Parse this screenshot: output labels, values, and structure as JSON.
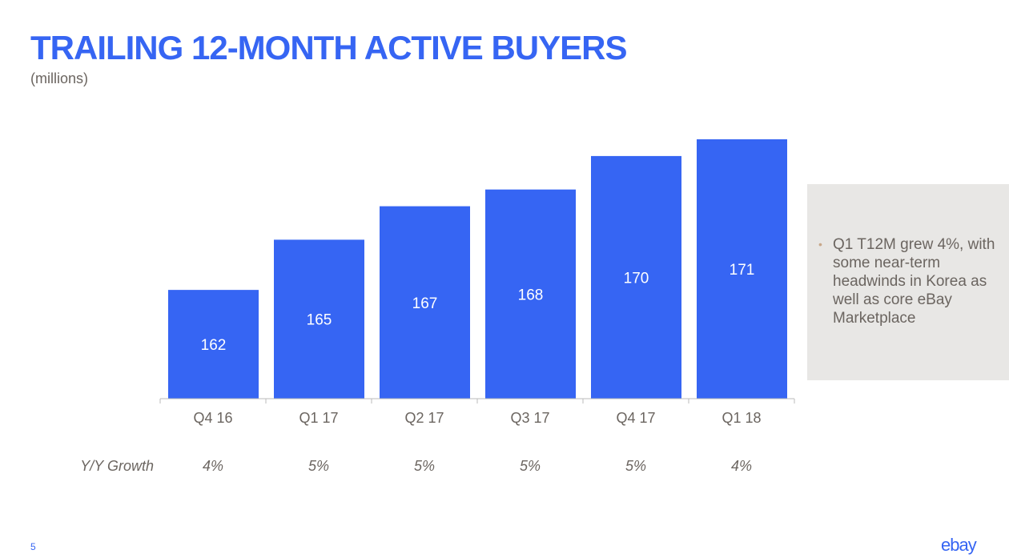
{
  "header": {
    "title": "TRAILING 12-MONTH ACTIVE BUYERS",
    "subtitle": "(millions)"
  },
  "chart_data": {
    "type": "bar",
    "title": "TRAILING 12-MONTH ACTIVE BUYERS",
    "ylabel": "(millions)",
    "categories": [
      "Q4 16",
      "Q1 17",
      "Q2 17",
      "Q3 17",
      "Q4 17",
      "Q1 18"
    ],
    "values": [
      162,
      165,
      167,
      168,
      170,
      171
    ],
    "ylim": [
      155.5,
      171
    ],
    "color": "#3665f3",
    "growth_label": "Y/Y Growth",
    "growth": [
      "4%",
      "5%",
      "5%",
      "5%",
      "5%",
      "4%"
    ]
  },
  "sidebar": {
    "bullet": "Q1 T12M grew 4%, with some near-term headwinds in Korea as well as core eBay Marketplace"
  },
  "footer": {
    "page": "5",
    "logo": "ebay"
  }
}
